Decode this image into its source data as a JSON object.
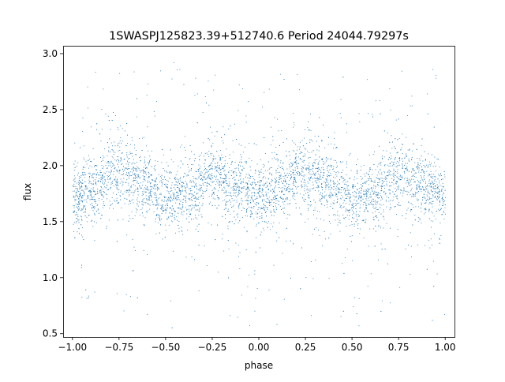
{
  "chart_data": {
    "type": "scatter",
    "title": "1SWASPJ125823.39+512740.6 Period 24044.79297s",
    "xlabel": "phase",
    "ylabel": "flux",
    "xlim": [
      -1.05,
      1.05
    ],
    "ylim": [
      0.47,
      3.07
    ],
    "xticks": [
      -1.0,
      -0.75,
      -0.5,
      -0.25,
      0.0,
      0.25,
      0.5,
      0.75,
      1.0
    ],
    "xtick_labels": [
      "−1.00",
      "−0.75",
      "−0.50",
      "−0.25",
      "0.00",
      "0.25",
      "0.50",
      "0.75",
      "1.00"
    ],
    "yticks": [
      0.5,
      1.0,
      1.5,
      2.0,
      2.5,
      3.0
    ],
    "ytick_labels": [
      "0.5",
      "1.0",
      "1.5",
      "2.0",
      "2.5",
      "3.0"
    ],
    "grid": false,
    "legend": "none",
    "marker_color": "#1f77b4",
    "series": [
      {
        "x_range": [
          -1.0,
          1.0
        ],
        "y_range": [
          0.55,
          3.0
        ],
        "trend": [
          {
            "x": -1.0,
            "y": 1.7
          },
          {
            "x": -0.875,
            "y": 1.82
          },
          {
            "x": -0.75,
            "y": 1.97
          },
          {
            "x": -0.625,
            "y": 1.85
          },
          {
            "x": -0.5,
            "y": 1.68
          },
          {
            "x": -0.375,
            "y": 1.77
          },
          {
            "x": -0.25,
            "y": 1.93
          },
          {
            "x": -0.125,
            "y": 1.82
          },
          {
            "x": 0.0,
            "y": 1.7
          },
          {
            "x": 0.125,
            "y": 1.82
          },
          {
            "x": 0.25,
            "y": 1.97
          },
          {
            "x": 0.375,
            "y": 1.85
          },
          {
            "x": 0.5,
            "y": 1.68
          },
          {
            "x": 0.625,
            "y": 1.77
          },
          {
            "x": 0.75,
            "y": 1.93
          },
          {
            "x": 0.875,
            "y": 1.82
          },
          {
            "x": 1.0,
            "y": 1.7
          }
        ]
      }
    ]
  }
}
